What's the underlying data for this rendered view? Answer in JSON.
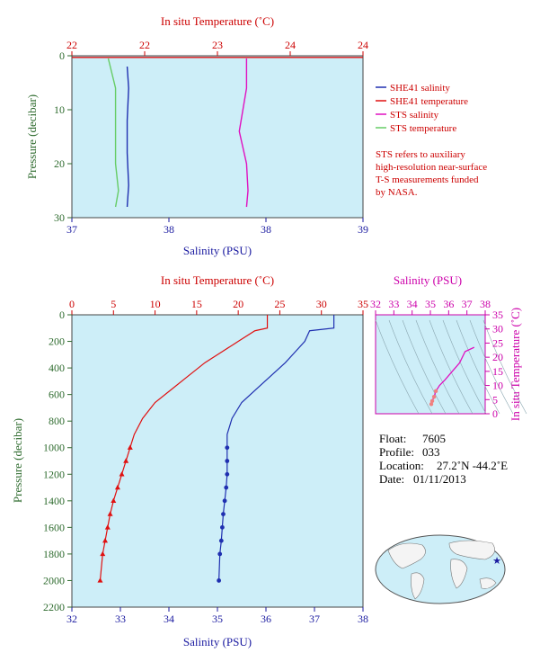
{
  "chart_data": [
    {
      "type": "line",
      "panel": "near-surface profile",
      "top_axis": {
        "label": "In situ Temperature (˚C)",
        "range": [
          22,
          24
        ],
        "ticks": [
          "22",
          "22",
          "23",
          "24",
          "24"
        ]
      },
      "bottom_axis": {
        "label": "Salinity (PSU)",
        "range": [
          37,
          39
        ],
        "ticks": [
          "37",
          "38",
          "38",
          "39"
        ]
      },
      "y_axis": {
        "label": "Pressure (decibar)",
        "range": [
          0,
          30
        ],
        "ticks": [
          "0",
          "10",
          "20",
          "30"
        ],
        "inverted": true
      },
      "series": [
        {
          "name": "SHE41 salinity",
          "color": "#1f2fb0",
          "x": [
            37.38,
            37.39,
            37.38,
            37.38,
            37.39,
            37.38
          ],
          "y": [
            2,
            6,
            12,
            18,
            24,
            28
          ]
        },
        {
          "name": "SHE41 temperature",
          "color": "#e01010",
          "x": [
            22.0,
            24.0
          ],
          "y": [
            0.3,
            0.3
          ]
        },
        {
          "name": "STS salinity",
          "color": "#e010c0",
          "x": [
            38.2,
            38.2,
            38.15,
            38.2,
            38.21,
            38.2
          ],
          "y": [
            0.5,
            6,
            14,
            20,
            25,
            28
          ]
        },
        {
          "name": "STS temperature",
          "color": "#66cc66",
          "x": [
            22.25,
            22.3,
            22.3,
            22.3,
            22.32,
            22.3
          ],
          "y": [
            0.5,
            6,
            14,
            20,
            25,
            28
          ]
        }
      ],
      "legend": [
        "SHE41 salinity",
        "SHE41 temperature",
        "STS salinity",
        "STS temperature"
      ],
      "note": [
        "STS refers to auxiliary",
        "high-resolution near-surface",
        "T-S measurements funded",
        "by NASA."
      ]
    },
    {
      "type": "line",
      "panel": "full profile",
      "top_axis": {
        "label": "In situ Temperature (˚C)",
        "range": [
          0,
          35
        ],
        "ticks": [
          "0",
          "5",
          "10",
          "15",
          "20",
          "25",
          "30",
          "35"
        ]
      },
      "bottom_axis": {
        "label": "Salinity (PSU)",
        "range": [
          32,
          38
        ],
        "ticks": [
          "32",
          "33",
          "34",
          "35",
          "36",
          "37",
          "38"
        ]
      },
      "y_axis": {
        "label": "Pressure (decibar)",
        "range": [
          0,
          2200
        ],
        "ticks": [
          "0",
          "200",
          "400",
          "600",
          "800",
          "1000",
          "1200",
          "1400",
          "1600",
          "1800",
          "2000",
          "2200"
        ],
        "inverted": true
      },
      "series": [
        {
          "name": "temperature",
          "color": "#e01010",
          "x": [
            23.5,
            23.5,
            22,
            20,
            18,
            16,
            14,
            12,
            10,
            8.5,
            7.5,
            7,
            6.5,
            6,
            5.5,
            5,
            4.6,
            4.3,
            4.0,
            3.7,
            3.4
          ],
          "y": [
            0,
            100,
            120,
            200,
            280,
            360,
            460,
            560,
            660,
            780,
            900,
            1000,
            1100,
            1200,
            1300,
            1400,
            1500,
            1600,
            1700,
            1800,
            2000
          ]
        },
        {
          "name": "salinity",
          "color": "#1f2fb0",
          "x": [
            37.4,
            37.4,
            36.9,
            36.8,
            36.6,
            36.4,
            36.1,
            35.8,
            35.5,
            35.3,
            35.2,
            35.2,
            35.2,
            35.2,
            35.18,
            35.15,
            35.12,
            35.1,
            35.08,
            35.05,
            35.03
          ],
          "y": [
            0,
            100,
            120,
            200,
            280,
            360,
            460,
            560,
            660,
            780,
            900,
            1000,
            1100,
            1200,
            1300,
            1400,
            1500,
            1600,
            1700,
            1800,
            2000
          ]
        }
      ]
    },
    {
      "type": "scatter",
      "panel": "T-S diagram",
      "top_axis": {
        "label": "Salinity (PSU)",
        "range": [
          32,
          38
        ],
        "ticks": [
          "32",
          "33",
          "34",
          "35",
          "36",
          "37",
          "38"
        ]
      },
      "y_axis": {
        "label": "In situ Temperature (˚C)",
        "range": [
          0,
          35
        ],
        "ticks": [
          "0",
          "5",
          "10",
          "15",
          "20",
          "25",
          "30",
          "35"
        ]
      },
      "series": [
        {
          "name": "T-S",
          "color": "#e010c0",
          "x": [
            37.4,
            36.9,
            36.6,
            36.2,
            35.8,
            35.5,
            35.3,
            35.2,
            35.1,
            35.05
          ],
          "y": [
            23.5,
            22,
            18,
            15,
            12,
            10,
            8,
            6,
            4.5,
            3.4
          ]
        }
      ]
    }
  ],
  "info": {
    "float_label": "Float:",
    "float": "7605",
    "profile_label": "Profile:",
    "profile": "033",
    "location_label": "Location:",
    "location": "27.2˚N  -44.2˚E",
    "date_label": "Date:",
    "date": "01/11/2013"
  },
  "colors": {
    "plot_bg": "#cdeef8",
    "axis_red": "#cc0000",
    "axis_green": "#2e6b2e",
    "axis_magenta": "#cc00aa",
    "axis_blue": "#1a1aa0"
  }
}
